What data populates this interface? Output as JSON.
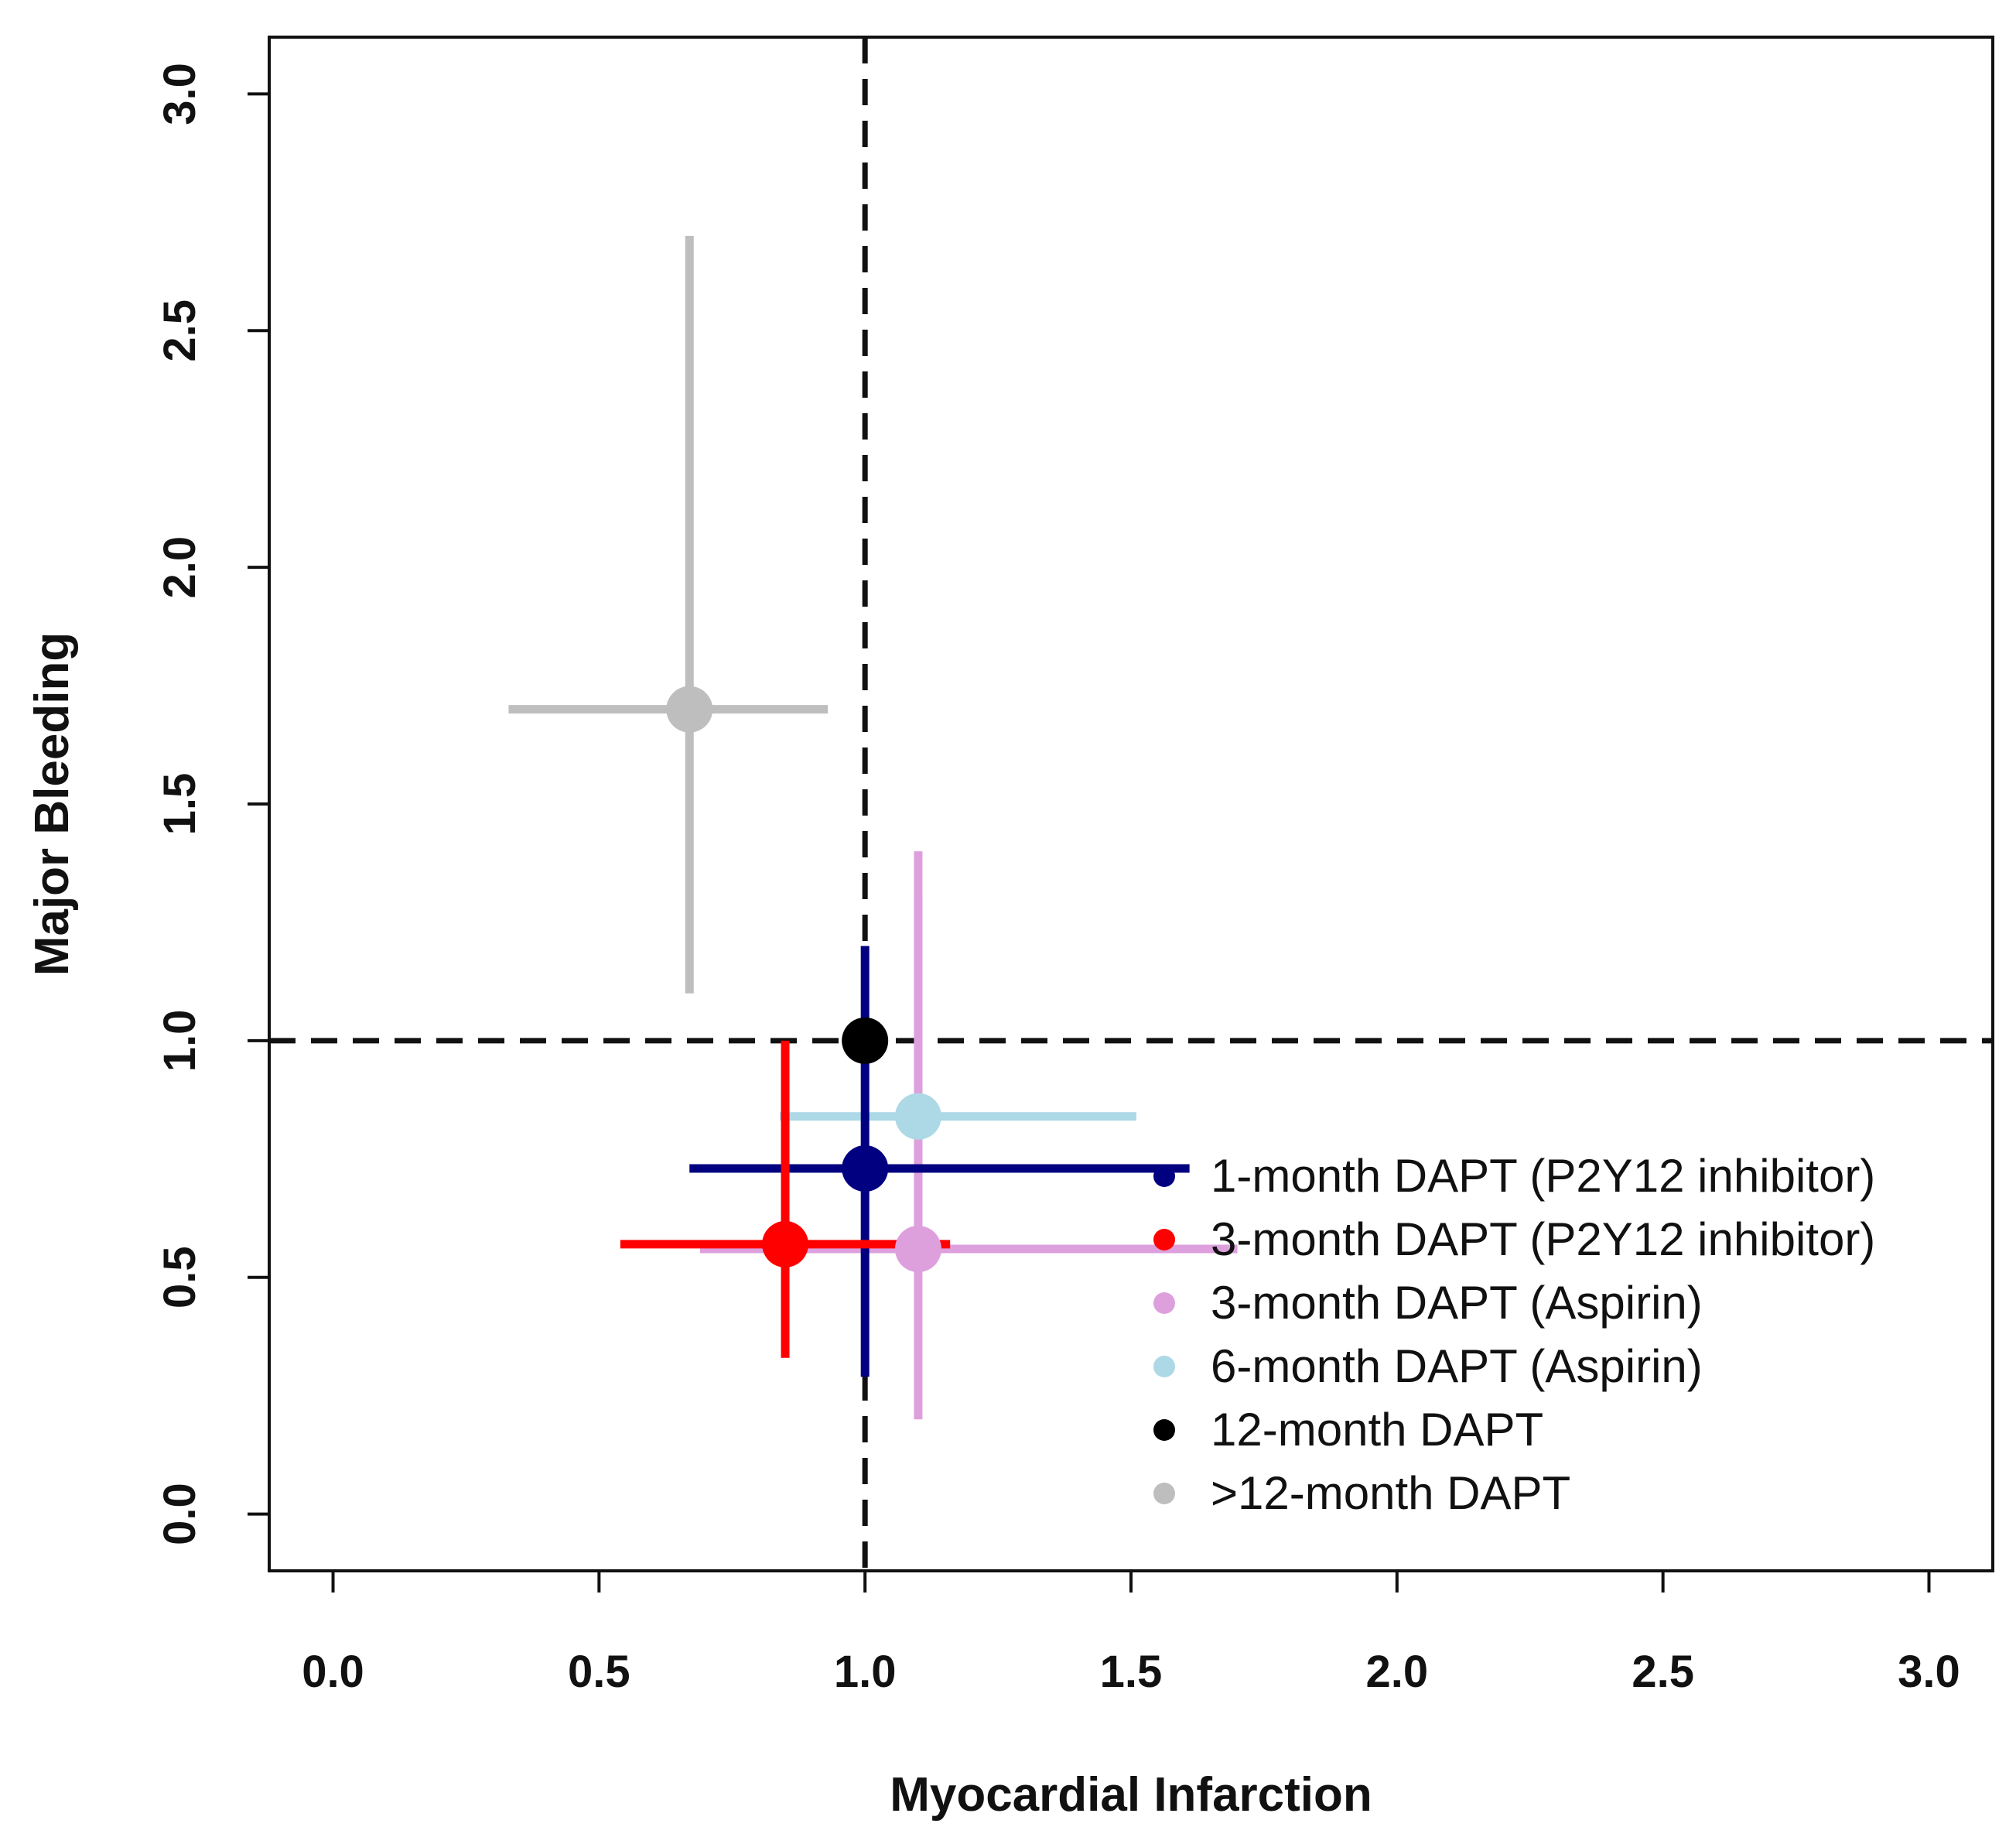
{
  "chart_data": {
    "type": "scatter",
    "title": "",
    "xlabel": "Myocardial Infarction",
    "ylabel": "Major Bleeding",
    "xlim": [
      -0.12,
      3.12
    ],
    "ylim": [
      -0.12,
      3.12
    ],
    "x_ticks": [
      "0.0",
      "0.5",
      "1.0",
      "1.5",
      "2.0",
      "2.5",
      "3.0"
    ],
    "y_ticks": [
      "0.0",
      "0.5",
      "1.0",
      "1.5",
      "2.0",
      "2.5",
      "3.0"
    ],
    "reference_lines": {
      "x": 1.0,
      "y": 1.0,
      "style": "dashed"
    },
    "legend_position": "bottom-right",
    "series": [
      {
        "name": "1-month DAPT (P2Y12 inhibitor)",
        "color": "#000080",
        "x": 1.0,
        "y": 0.73,
        "x_ci": [
          0.67,
          1.61
        ],
        "y_ci": [
          0.29,
          1.2
        ]
      },
      {
        "name": "3-month DAPT (P2Y12 inhibitor)",
        "color": "#ff0000",
        "x": 0.85,
        "y": 0.57,
        "x_ci": [
          0.54,
          1.16
        ],
        "y_ci": [
          0.33,
          1.0
        ]
      },
      {
        "name": "3-month DAPT (Aspirin)",
        "color": "#dda0dd",
        "x": 1.1,
        "y": 0.56,
        "x_ci": [
          0.69,
          1.7
        ],
        "y_ci": [
          0.2,
          1.4
        ]
      },
      {
        "name": "6-month DAPT (Aspirin)",
        "color": "#add8e6",
        "x": 1.1,
        "y": 0.84,
        "x_ci": [
          0.84,
          1.51
        ],
        "y_ci": [
          0.61,
          1.3
        ]
      },
      {
        "name": "12-month DAPT",
        "color": "#000000",
        "x": 1.0,
        "y": 1.0,
        "x_ci": null,
        "y_ci": null
      },
      {
        "name": ">12-month DAPT",
        "color": "#bebebe",
        "x": 0.67,
        "y": 1.7,
        "x_ci": [
          0.33,
          0.93
        ],
        "y_ci": [
          1.1,
          2.7
        ]
      }
    ]
  }
}
